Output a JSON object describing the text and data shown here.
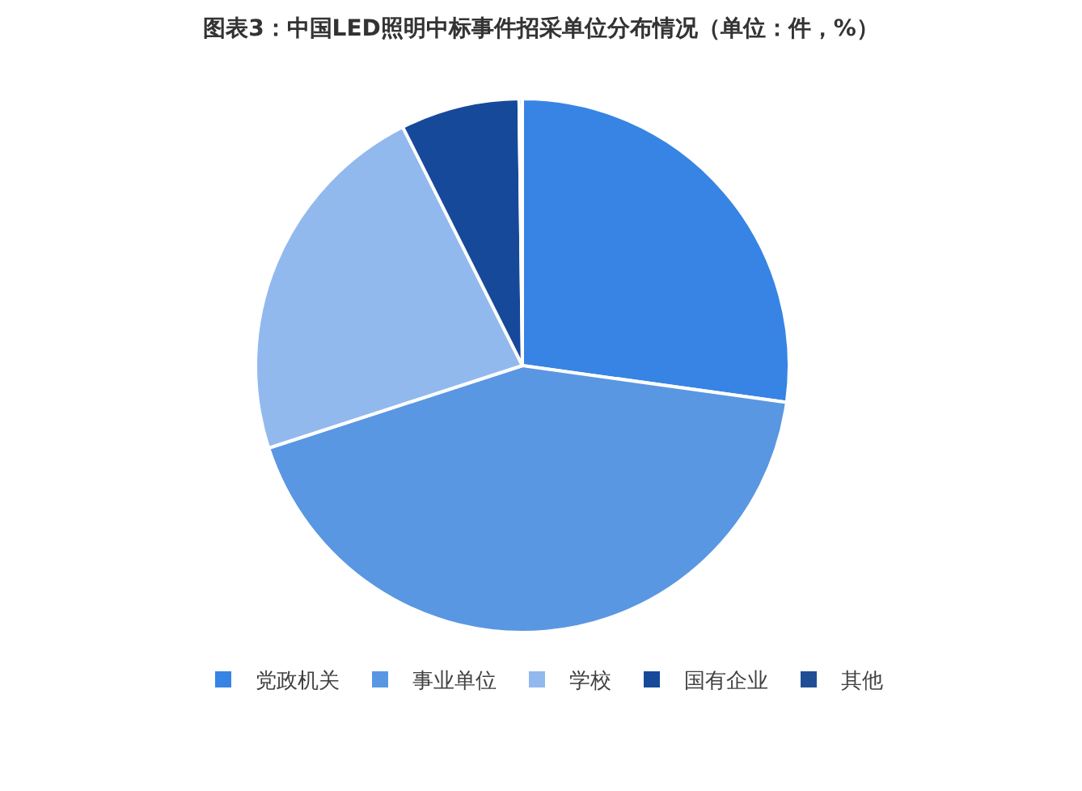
{
  "chart_data": {
    "type": "pie",
    "title": "图表3：中国LED照明中标事件招采单位分布情况（单位：件，%）",
    "categories": [
      "党政机关",
      "事业单位",
      "学校",
      "国有企业",
      "其他"
    ],
    "values": [
      27.2,
      42.8,
      22.6,
      7.2,
      0.2
    ],
    "colors": [
      "#3784e4",
      "#5a97e2",
      "#92b9ee",
      "#17499a",
      "#1f4e96"
    ],
    "legend": "bottom"
  }
}
